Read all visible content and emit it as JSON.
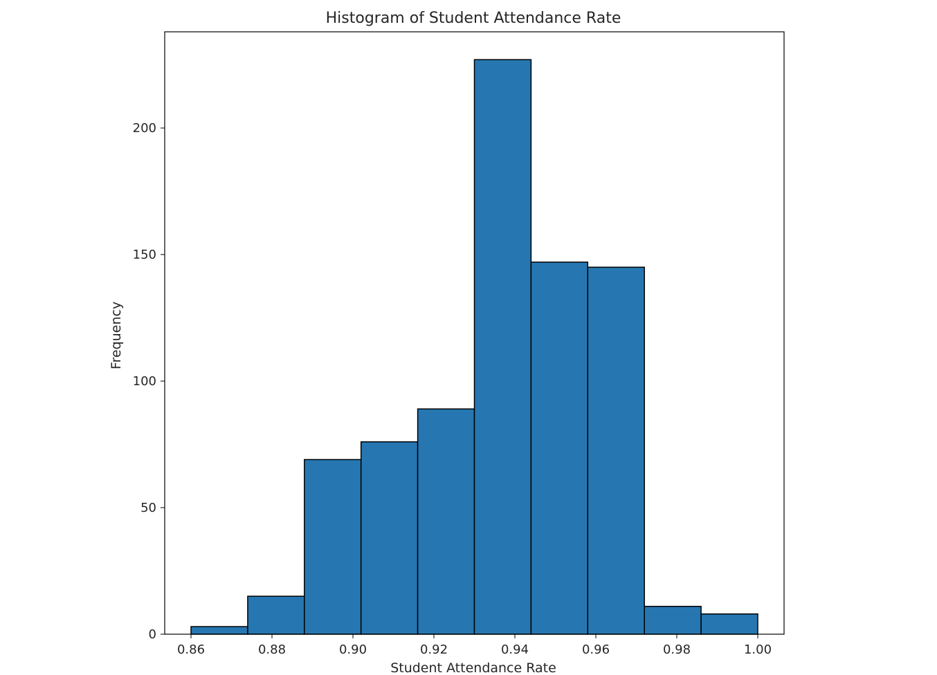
{
  "chart_data": {
    "type": "bar",
    "title": "Histogram of Student Attendance Rate",
    "xlabel": "Student Attendance Rate",
    "ylabel": "Frequency",
    "xlim": [
      0.8535,
      1.0065
    ],
    "ylim": [
      0,
      238
    ],
    "grid": false,
    "bar_color": "#2677b1",
    "edge_color": "#000000",
    "bin_edges": [
      0.86,
      0.874,
      0.888,
      0.902,
      0.916,
      0.93,
      0.944,
      0.958,
      0.972,
      0.986,
      1.0
    ],
    "values": [
      3,
      15,
      69,
      76,
      89,
      227,
      147,
      145,
      11,
      8
    ],
    "x_ticks": [
      {
        "value": 0.86,
        "label": "0.86"
      },
      {
        "value": 0.88,
        "label": "0.88"
      },
      {
        "value": 0.9,
        "label": "0.90"
      },
      {
        "value": 0.92,
        "label": "0.92"
      },
      {
        "value": 0.94,
        "label": "0.94"
      },
      {
        "value": 0.96,
        "label": "0.96"
      },
      {
        "value": 0.98,
        "label": "0.98"
      },
      {
        "value": 1.0,
        "label": "1.00"
      }
    ],
    "y_ticks": [
      {
        "value": 0,
        "label": "0"
      },
      {
        "value": 50,
        "label": "50"
      },
      {
        "value": 100,
        "label": "100"
      },
      {
        "value": 150,
        "label": "150"
      },
      {
        "value": 200,
        "label": "200"
      }
    ]
  }
}
